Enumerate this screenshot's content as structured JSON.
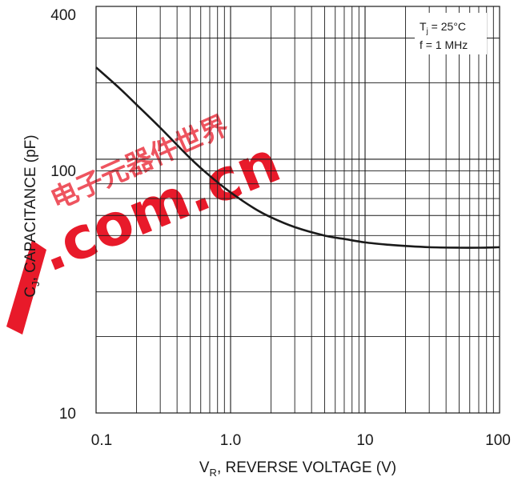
{
  "chart_data": {
    "type": "line",
    "x_scale": "log",
    "y_scale": "log",
    "xlim": [
      0.1,
      100
    ],
    "ylim": [
      10,
      400
    ],
    "xlabel": {
      "prefix": "V",
      "subscript": "R",
      "suffix": ", REVERSE VOLTAGE (V)"
    },
    "ylabel": {
      "prefix": "C",
      "subscript": "J",
      "suffix": ", CAPACITANCE (pF)"
    },
    "x_ticks": [
      "0.1",
      "1.0",
      "10",
      "100"
    ],
    "y_ticks": [
      "400",
      "100",
      "10"
    ],
    "grid": true,
    "conditions": [
      {
        "prefix": "T",
        "subscript": "j",
        "suffix": " = 25°C"
      },
      {
        "prefix": "f = 1 MHz",
        "subscript": "",
        "suffix": ""
      }
    ],
    "series": [
      {
        "x": [
          0.1,
          0.15,
          0.2,
          0.3,
          0.5,
          0.7,
          1.0,
          1.5,
          2,
          3,
          5,
          7,
          10,
          15,
          20,
          30,
          50,
          70,
          100
        ],
        "y": [
          230,
          190,
          164,
          133,
          101,
          86,
          74,
          64,
          59,
          54,
          50,
          48.5,
          47,
          46,
          45.5,
          45,
          44.8,
          44.8,
          45
        ]
      }
    ]
  },
  "watermark": {
    "text": ".com.cn",
    "glyphs": "电子元器件世界"
  },
  "colors": {
    "line": "#1a1a1a",
    "grid": "#1a1a1a",
    "watermark": "#e60012"
  }
}
